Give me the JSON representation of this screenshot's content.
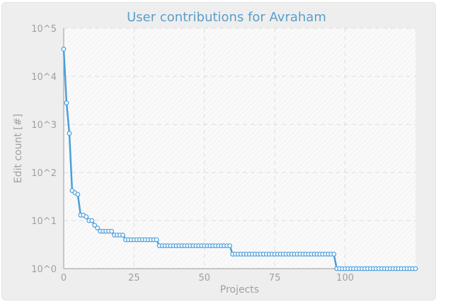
{
  "chart_data": {
    "type": "line",
    "title": "User contributions for Avraham",
    "xlabel": "Projects",
    "ylabel": "Edit count [#]",
    "xlim": [
      0,
      125
    ],
    "ylim": [
      1,
      100000
    ],
    "y_scale": "log",
    "grid": true,
    "x_ticks": [
      "0",
      "25",
      "50",
      "75",
      "100"
    ],
    "y_ticks": [
      "10^0",
      "10^1",
      "10^2",
      "10^3",
      "10^4",
      "10^5"
    ],
    "series": [
      {
        "color": "#4a9fdc",
        "values": [
          37000,
          2800,
          650,
          42,
          38,
          35,
          13,
          13,
          12,
          10,
          10,
          8,
          7,
          6,
          6,
          6,
          6,
          6,
          5,
          5,
          5,
          5,
          4,
          4,
          4,
          4,
          4,
          4,
          4,
          4,
          4,
          4,
          4,
          4,
          3,
          3,
          3,
          3,
          3,
          3,
          3,
          3,
          3,
          3,
          3,
          3,
          3,
          3,
          3,
          3,
          3,
          3,
          3,
          3,
          3,
          3,
          3,
          3,
          3,
          3,
          2,
          2,
          2,
          2,
          2,
          2,
          2,
          2,
          2,
          2,
          2,
          2,
          2,
          2,
          2,
          2,
          2,
          2,
          2,
          2,
          2,
          2,
          2,
          2,
          2,
          2,
          2,
          2,
          2,
          2,
          2,
          2,
          2,
          2,
          2,
          2,
          2,
          1,
          1,
          1,
          1,
          1,
          1,
          1,
          1,
          1,
          1,
          1,
          1,
          1,
          1,
          1,
          1,
          1,
          1,
          1,
          1,
          1,
          1,
          1,
          1,
          1,
          1,
          1,
          1,
          1
        ]
      }
    ]
  }
}
